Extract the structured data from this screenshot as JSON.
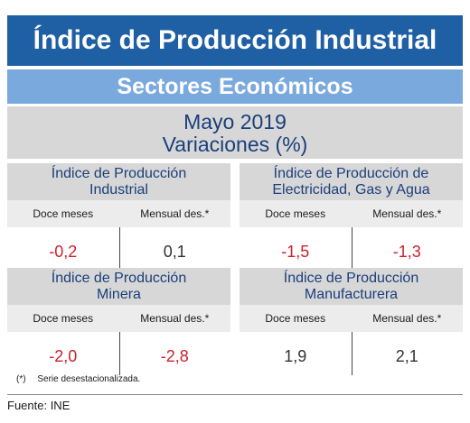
{
  "header": {
    "title": "Índice de Producción Industrial",
    "subtitle": "Sectores Económicos",
    "period": "Mayo 2019",
    "measure": "Variaciones (%)"
  },
  "columns": {
    "col1": "Doce meses",
    "col2": "Mensual des.*"
  },
  "cards": [
    {
      "title_line1": "Índice de Producción",
      "title_line2": "Industrial",
      "doce_meses": "-0,2",
      "mensual": "0,1"
    },
    {
      "title_line1": "Índice de Producción de",
      "title_line2": "Electricidad, Gas y Agua",
      "doce_meses": "-1,5",
      "mensual": "-1,3"
    },
    {
      "title_line1": "Índice de Producción",
      "title_line2": "Minera",
      "doce_meses": "-2,0",
      "mensual": "-2,8"
    },
    {
      "title_line1": "Índice de Producción",
      "title_line2": "Manufacturera",
      "doce_meses": "1,9",
      "mensual": "2,1"
    }
  ],
  "footnote": {
    "mark": "(*)",
    "text": "Serie desestacionalizada."
  },
  "source": "Fuente: INE",
  "colors": {
    "title_bg": "#1f5fa3",
    "subtitle_bg": "#7aa9dd",
    "panel_bg": "#d7d7d7",
    "negative": "#d1202a",
    "heading_text": "#1a3f7a"
  }
}
